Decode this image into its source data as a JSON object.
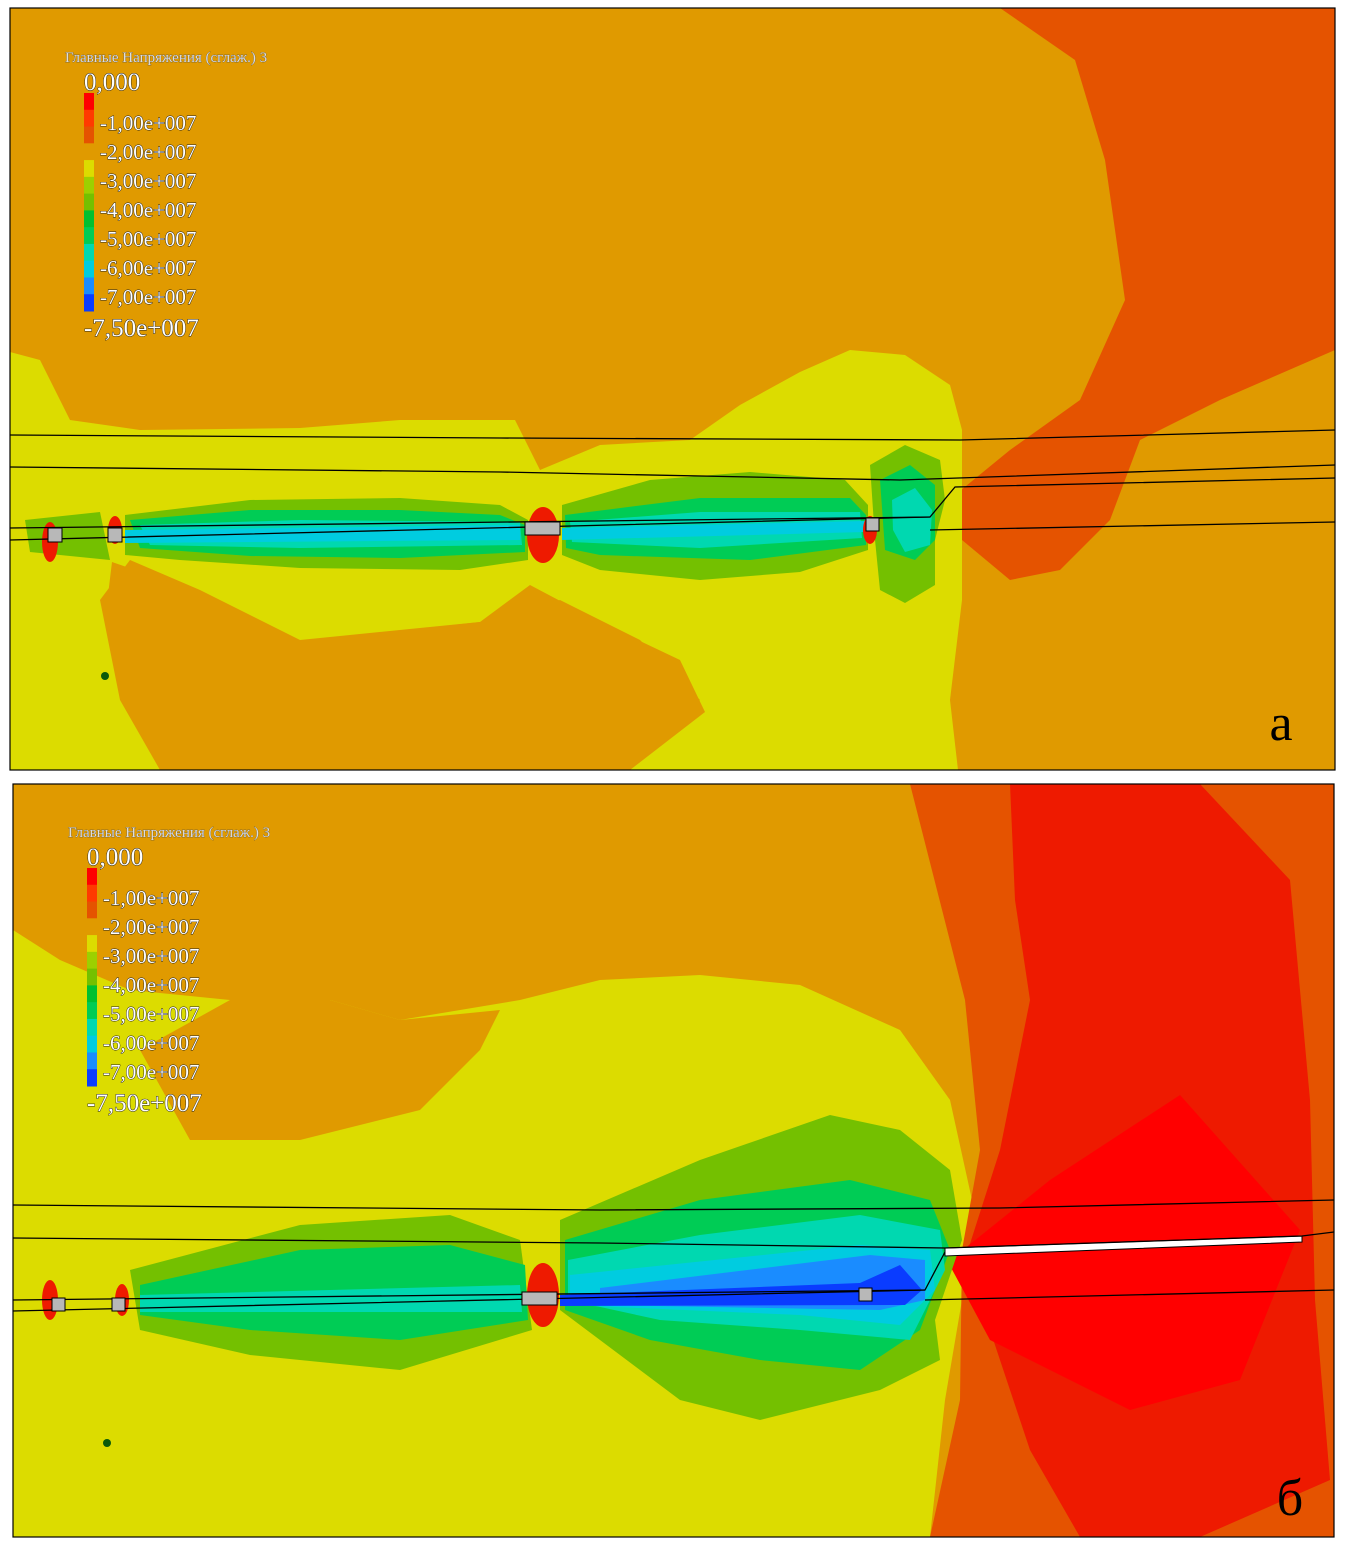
{
  "panels": [
    {
      "legend": {
        "title": "Главные Напряжения (сглаж.) 3",
        "labels": [
          "0,000",
          "-1,00e+007",
          "-2,00e+007",
          "-3,00e+007",
          "-4,00e+007",
          "-5,00e+007",
          "-6,00e+007",
          "-7,00e+007",
          "-7,50e+007"
        ]
      },
      "label": "а"
    },
    {
      "legend": {
        "title": "Главные Напряжения (сглаж.) 3",
        "labels": [
          "0,000",
          "-1,00e+007",
          "-2,00e+007",
          "-3,00e+007",
          "-4,00e+007",
          "-5,00e+007",
          "-6,00e+007",
          "-7,00e+007",
          "-7,50e+007"
        ]
      },
      "label": "б"
    }
  ]
}
